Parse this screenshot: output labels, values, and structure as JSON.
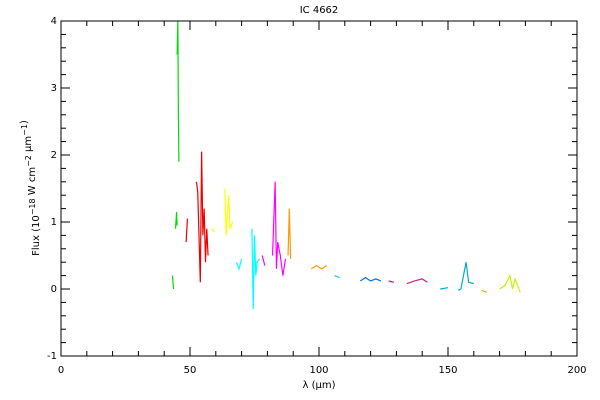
{
  "chart_data": {
    "type": "line",
    "title": "IC 4662",
    "x_label": "λ (μm)",
    "y_label": {
      "text": [
        "Flux (10",
        " W cm",
        " μm",
        ")"
      ],
      "superscripts": [
        "−18",
        "−2",
        "−1"
      ]
    },
    "xlim": [
      0,
      200
    ],
    "xticks": [
      0,
      50,
      100,
      150,
      200
    ],
    "ylim": [
      -1,
      4
    ],
    "yticks": [
      -1,
      0,
      1,
      2,
      3,
      4
    ],
    "minor_per_major": 5,
    "series": [
      {
        "color": "#00dd00",
        "x": [
          43.2,
          43.6,
          null,
          44.4,
          44.8,
          45.0,
          null,
          45.0,
          45.3,
          45.5,
          45.7
        ],
        "values": [
          0.2,
          0.0,
          null,
          0.9,
          1.15,
          0.95,
          null,
          3.5,
          4.0,
          2.6,
          1.9
        ]
      },
      {
        "color": "#ee0000",
        "x": [
          48.5,
          49,
          null,
          52.5,
          53,
          54,
          54.5,
          55,
          55.5,
          56,
          56.5,
          57
        ],
        "values": [
          0.7,
          1.05,
          null,
          1.6,
          1.45,
          0.1,
          2.05,
          0.8,
          1.2,
          0.4,
          0.9,
          0.5
        ]
      },
      {
        "color": "#ffff00",
        "x": [
          58.5,
          59.5,
          null,
          63.5,
          64,
          65,
          65.5,
          66.5
        ],
        "values": [
          0.9,
          0.85,
          null,
          1.5,
          0.8,
          1.4,
          0.9,
          1.0
        ]
      },
      {
        "color": "#00ffff",
        "x": [
          68,
          69,
          70,
          null,
          74,
          74.5,
          75,
          75.5,
          76,
          77
        ],
        "values": [
          0.4,
          0.3,
          0.45,
          null,
          0.9,
          -0.3,
          0.8,
          0.2,
          0.4,
          0.45
        ]
      },
      {
        "color": "#ff00ff",
        "x": [
          78,
          79,
          null,
          82,
          83,
          83.5,
          84,
          85,
          86,
          87
        ],
        "values": [
          0.5,
          0.35,
          null,
          0.5,
          1.6,
          0.3,
          0.7,
          0.5,
          0.2,
          0.45
        ]
      },
      {
        "color": "#ff9900",
        "x": [
          88,
          88.5,
          89,
          null,
          97,
          99,
          101,
          103
        ],
        "values": [
          0.5,
          1.2,
          0.45,
          null,
          0.3,
          0.35,
          0.3,
          0.35
        ]
      },
      {
        "color": "#33bbff",
        "x": [
          106,
          108
        ],
        "values": [
          0.2,
          0.17
        ]
      },
      {
        "color": "#0077dd",
        "x": [
          116,
          118,
          120,
          122,
          124
        ],
        "values": [
          0.12,
          0.17,
          0.12,
          0.15,
          0.12
        ]
      },
      {
        "color": "#dd0088",
        "x": [
          127,
          129
        ],
        "values": [
          0.12,
          0.1
        ]
      },
      {
        "color": "#cc2299",
        "x": [
          134,
          137,
          140,
          142
        ],
        "values": [
          0.08,
          0.12,
          0.15,
          0.1
        ]
      },
      {
        "color": "#00aacc",
        "x": [
          147,
          150,
          null,
          154,
          155,
          157,
          158,
          160
        ],
        "values": [
          0.0,
          0.02,
          null,
          -0.02,
          0.0,
          0.4,
          0.1,
          0.08
        ]
      },
      {
        "color": "#ffaa00",
        "x": [
          163,
          165
        ],
        "values": [
          -0.02,
          -0.05
        ]
      },
      {
        "color": "#ccee00",
        "x": [
          170,
          172,
          174,
          175,
          176,
          178
        ],
        "values": [
          0.0,
          0.05,
          0.2,
          0.0,
          0.15,
          -0.05
        ]
      }
    ]
  }
}
